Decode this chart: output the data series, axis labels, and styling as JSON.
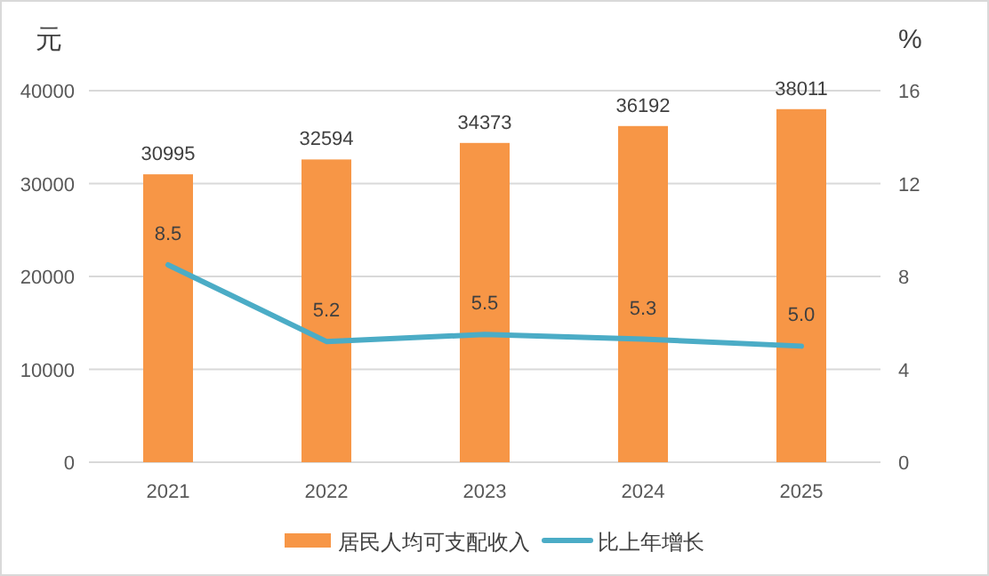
{
  "chart_data": {
    "type": "bar",
    "ylabel": "元",
    "y2label": "%",
    "categories": [
      "2021",
      "2022",
      "2023",
      "2024",
      "2025"
    ],
    "series": [
      {
        "name": "居民人均可支配收入",
        "color": "#f79646",
        "values": [
          30995,
          32594,
          34373,
          36192,
          38011
        ],
        "value_labels": [
          "30995",
          "32594",
          "34373",
          "36192",
          "38011"
        ]
      },
      {
        "name": "比上年增长",
        "type": "line",
        "axis": "y2",
        "color": "#4bacc6",
        "values": [
          8.5,
          5.2,
          5.5,
          5.3,
          5.0
        ],
        "value_labels": [
          "8.5",
          "5.2",
          "5.5",
          "5.3",
          "5.0"
        ]
      }
    ],
    "ylim": [
      0,
      40000
    ],
    "yticks": [
      0,
      10000,
      20000,
      30000,
      40000
    ],
    "y2lim": [
      0,
      16
    ],
    "y2ticks": [
      0,
      4,
      8,
      12,
      16
    ],
    "grid": "y",
    "legend": "bottom"
  }
}
